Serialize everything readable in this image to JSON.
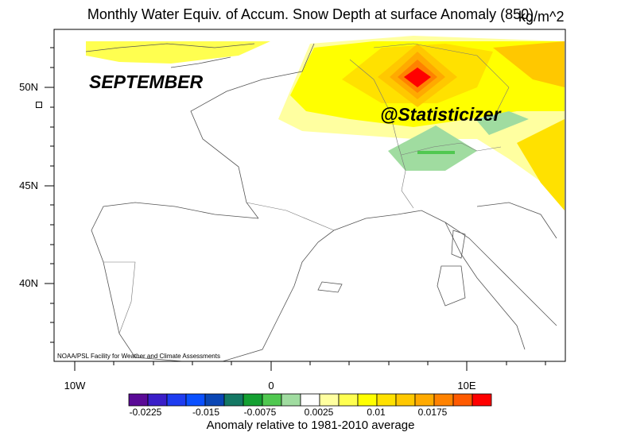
{
  "title": "Monthly Water Equiv. of Accum. Snow Depth at surface Anomaly (850)",
  "units": "kg/m^2",
  "overlay_month": "SEPTEMBER",
  "overlay_handle": "@Statisticizer",
  "credit": "NOAA/PSL Facility for Weather and Climate Assessments",
  "colorbar_title": "Anomaly relative to 1981-2010 average",
  "y_ticks": [
    "50N",
    "45N",
    "40N"
  ],
  "x_ticks": [
    "10W",
    "0",
    "10E"
  ],
  "colorbar_labels": [
    "-0.0225",
    "-0.015",
    "-0.0075",
    "0.0025",
    "0.01",
    "0.0175"
  ],
  "colorbar_colors": [
    "#5a0a96",
    "#3a1ec8",
    "#1e3cf0",
    "#0a50ff",
    "#0a46b4",
    "#147864",
    "#14a032",
    "#50c850",
    "#a0dca0",
    "#ffffff",
    "#ffffa0",
    "#ffff50",
    "#ffff00",
    "#ffe100",
    "#ffc800",
    "#ffaa00",
    "#ff8200",
    "#ff5a00",
    "#ff0000"
  ],
  "map_extent": {
    "lon": [
      -11,
      15
    ],
    "lat": [
      36,
      52.5
    ]
  }
}
